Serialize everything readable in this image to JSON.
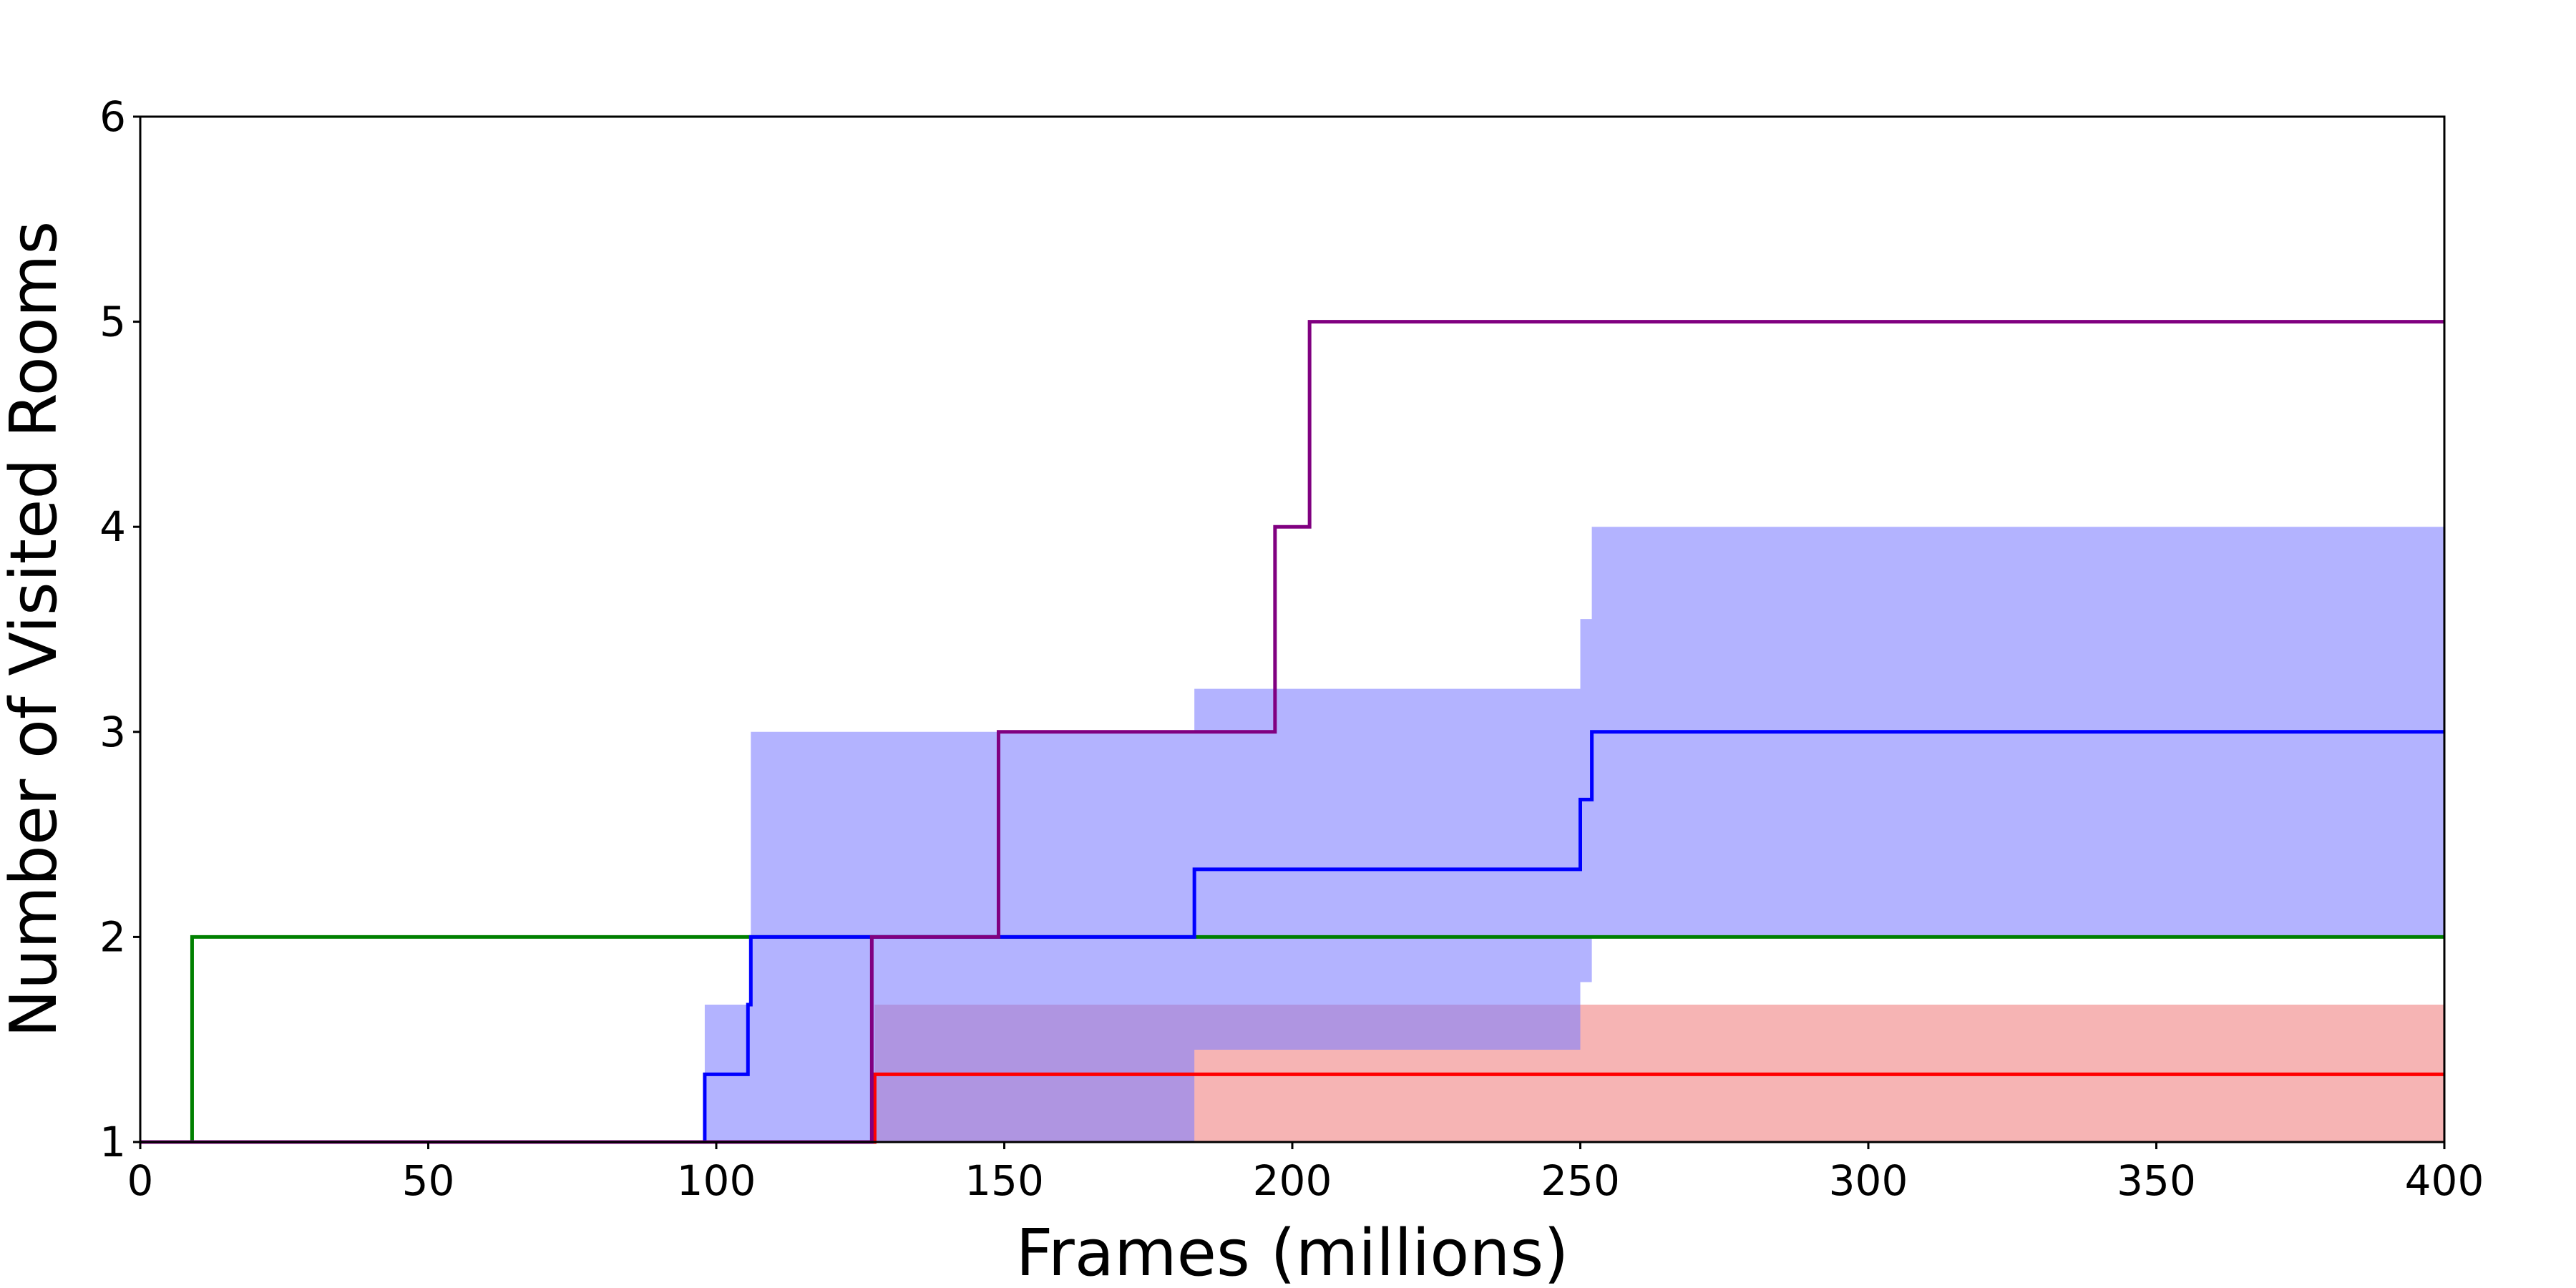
{
  "chart_data": {
    "type": "line",
    "step": true,
    "title": "",
    "xlabel": "Frames (millions)",
    "ylabel": "Number of Visited Rooms",
    "xlim": [
      0,
      400
    ],
    "ylim": [
      1,
      6
    ],
    "xticks": [
      0,
      50,
      100,
      150,
      200,
      250,
      300,
      350,
      400
    ],
    "yticks": [
      1,
      2,
      3,
      4,
      5,
      6
    ],
    "grid": false,
    "legend": "none",
    "bands": [
      {
        "color": "#f4a7a7",
        "opacity": 0.85,
        "points": [
          {
            "x": 127,
            "low": 1,
            "high": 1
          },
          {
            "x": 127.5,
            "low": 1,
            "high": 1.67
          },
          {
            "x": 183,
            "low": 1,
            "high": 1.67
          },
          {
            "x": 400,
            "low": 1,
            "high": 1.67
          }
        ]
      },
      {
        "color": "#8080ff",
        "opacity": 0.6,
        "points": [
          {
            "x": 0,
            "low": 1,
            "high": 1
          },
          {
            "x": 98,
            "low": 1,
            "high": 1.67
          },
          {
            "x": 106,
            "low": 1,
            "high": 3
          },
          {
            "x": 127,
            "low": 1,
            "high": 3
          },
          {
            "x": 183,
            "low": 1.45,
            "high": 3.21
          },
          {
            "x": 250,
            "low": 1.78,
            "high": 3.55
          },
          {
            "x": 252,
            "low": 2,
            "high": 4
          },
          {
            "x": 400,
            "low": 2,
            "high": 4
          }
        ]
      }
    ],
    "series": [
      {
        "color": "#008000",
        "x": [
          0,
          9,
          400
        ],
        "y": [
          1,
          2,
          2
        ]
      },
      {
        "color": "#ff0000",
        "x": [
          0,
          127.5,
          400
        ],
        "y": [
          1,
          1.33,
          1.33
        ]
      },
      {
        "color": "#0000ff",
        "x": [
          0,
          98,
          105.5,
          106,
          183,
          250,
          252,
          400
        ],
        "y": [
          1,
          1.33,
          1.67,
          2,
          2.33,
          2.67,
          3,
          3
        ]
      },
      {
        "color": "#800080",
        "x": [
          0,
          127,
          149,
          197,
          203,
          400
        ],
        "y": [
          1,
          2,
          3,
          4,
          5,
          5
        ]
      }
    ]
  }
}
